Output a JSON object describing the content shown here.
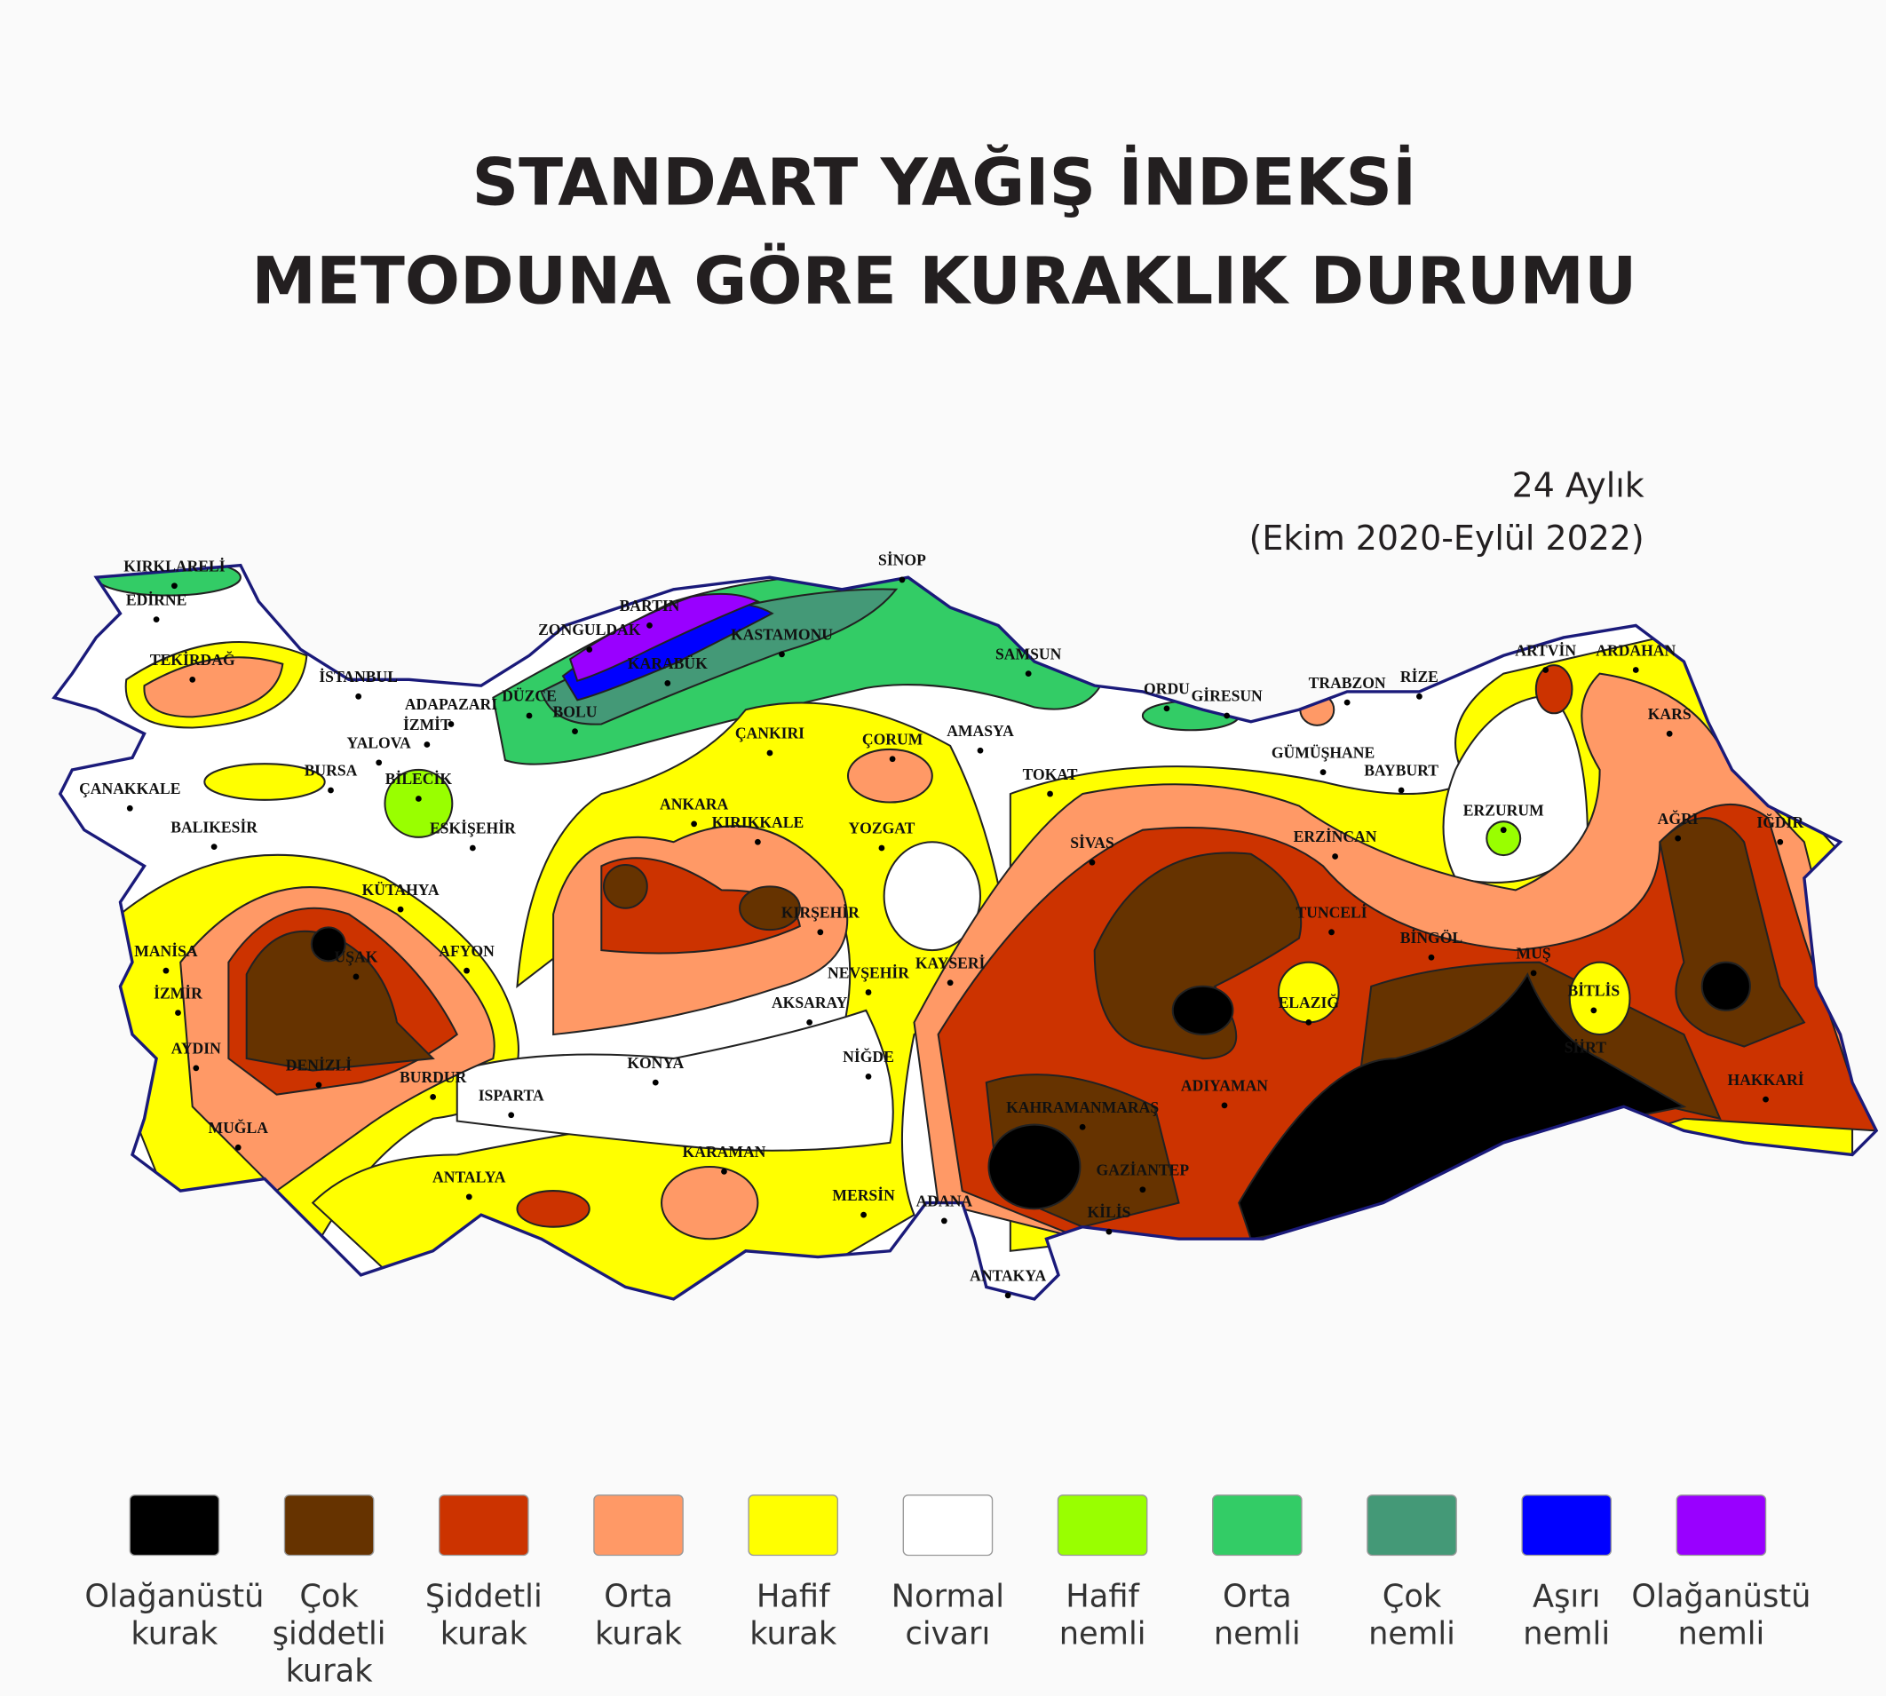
{
  "title": [
    "STANDART YAĞIŞ İNDEKSİ",
    "METODUNA GÖRE KURAKLIK DURUMU"
  ],
  "subtitle": [
    "24 Aylık",
    "(Ekim 2020-Eylül 2022)"
  ],
  "cities": [
    {
      "name": "KIRKLARELİ"
    },
    {
      "name": "EDİRNE"
    },
    {
      "name": "TEKİRDAĞ"
    },
    {
      "name": "İSTANBUL"
    },
    {
      "name": "ADAPAZARI"
    },
    {
      "name": "DÜZCE"
    },
    {
      "name": "BOLU"
    },
    {
      "name": "İZMİT"
    },
    {
      "name": "YALOVA"
    },
    {
      "name": "BURSA"
    },
    {
      "name": "BİLECİK"
    },
    {
      "name": "ÇANAKKALE"
    },
    {
      "name": "BALIKESİR"
    },
    {
      "name": "ESKİŞEHİR"
    },
    {
      "name": "KÜTAHYA"
    },
    {
      "name": "AFYON"
    },
    {
      "name": "MANİSA"
    },
    {
      "name": "İZMİR"
    },
    {
      "name": "UŞAK"
    },
    {
      "name": "AYDIN"
    },
    {
      "name": "DENİZLİ"
    },
    {
      "name": "BURDUR"
    },
    {
      "name": "ISPARTA"
    },
    {
      "name": "MUĞLA"
    },
    {
      "name": "ANTALYA"
    },
    {
      "name": "KONYA"
    },
    {
      "name": "KARAMAN"
    },
    {
      "name": "MERSİN"
    },
    {
      "name": "ADANA"
    },
    {
      "name": "NİĞDE"
    },
    {
      "name": "AKSARAY"
    },
    {
      "name": "NEVŞEHİR"
    },
    {
      "name": "KAYSERİ"
    },
    {
      "name": "KIRŞEHİR"
    },
    {
      "name": "KIRIKKALE"
    },
    {
      "name": "ANKARA"
    },
    {
      "name": "ÇANKIRI"
    },
    {
      "name": "ÇORUM"
    },
    {
      "name": "AMASYA"
    },
    {
      "name": "YOZGAT"
    },
    {
      "name": "SİNOP"
    },
    {
      "name": "BARTIN"
    },
    {
      "name": "ZONGULDAK"
    },
    {
      "name": "KASTAMONU"
    },
    {
      "name": "KARABÜK"
    },
    {
      "name": "SAMSUN"
    },
    {
      "name": "ORDU"
    },
    {
      "name": "GİRESUN"
    },
    {
      "name": "TRABZON"
    },
    {
      "name": "RİZE"
    },
    {
      "name": "ARTVİN"
    },
    {
      "name": "ARDAHAN"
    },
    {
      "name": "KARS"
    },
    {
      "name": "GÜMÜŞHANE"
    },
    {
      "name": "BAYBURT"
    },
    {
      "name": "ERZURUM"
    },
    {
      "name": "AĞRI"
    },
    {
      "name": "IĞDIR"
    },
    {
      "name": "TOKAT"
    },
    {
      "name": "SİVAS"
    },
    {
      "name": "ERZİNCAN"
    },
    {
      "name": "TUNCELİ"
    },
    {
      "name": "BİNGÖL"
    },
    {
      "name": "MUŞ"
    },
    {
      "name": "BİTLİS"
    },
    {
      "name": "ELAZIĞ"
    },
    {
      "name": "SİİRT"
    },
    {
      "name": "HAKKARİ"
    },
    {
      "name": "ADIYAMAN"
    },
    {
      "name": "KAHRAMANMARAŞ"
    },
    {
      "name": "GAZİANTEP"
    },
    {
      "name": "KİLİS"
    },
    {
      "name": "ANTAKYA"
    }
  ],
  "legend": [
    {
      "color": "#000000",
      "label": [
        "Olağanüstü",
        "kurak"
      ]
    },
    {
      "color": "#663300",
      "label": [
        "Çok",
        "şiddetli",
        "kurak"
      ]
    },
    {
      "color": "#cc3300",
      "label": [
        "Şiddetli",
        "kurak"
      ]
    },
    {
      "color": "#ff9966",
      "label": [
        "Orta",
        "kurak"
      ]
    },
    {
      "color": "#ffff00",
      "label": [
        "Hafif",
        "kurak"
      ]
    },
    {
      "color": "#ffffff",
      "label": [
        "Normal",
        "civarı"
      ]
    },
    {
      "color": "#99ff00",
      "label": [
        "Hafif",
        "nemli"
      ]
    },
    {
      "color": "#33cc66",
      "label": [
        "Orta",
        "nemli"
      ]
    },
    {
      "color": "#449977",
      "label": [
        "Çok",
        "nemli"
      ]
    },
    {
      "color": "#0000ff",
      "label": [
        "Aşırı",
        "nemli"
      ]
    },
    {
      "color": "#9900ff",
      "label": [
        "Olağanüstü",
        "nemli"
      ]
    }
  ]
}
